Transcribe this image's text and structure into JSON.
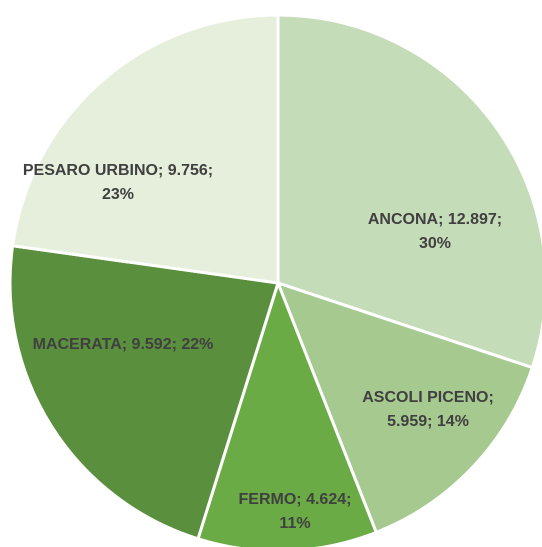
{
  "chart_data": {
    "type": "pie",
    "categories": [
      "ANCONA",
      "ASCOLI PICENO",
      "FERMO",
      "MACERATA",
      "PESARO URBINO"
    ],
    "values": [
      12897,
      5959,
      4624,
      9592,
      9756
    ],
    "value_labels": [
      "ANCONA; 12.897; 30%",
      "ASCOLI PICENO; 5.959; 14%",
      "FERMO; 4.624; 11%",
      "MACERATA; 9.592; 22%",
      "PESARO URBINO; 9.756; 23%"
    ],
    "colors": [
      "#c5dcb9",
      "#a5c98f",
      "#6aab46",
      "#5a8f3d",
      "#e6efdc"
    ]
  }
}
